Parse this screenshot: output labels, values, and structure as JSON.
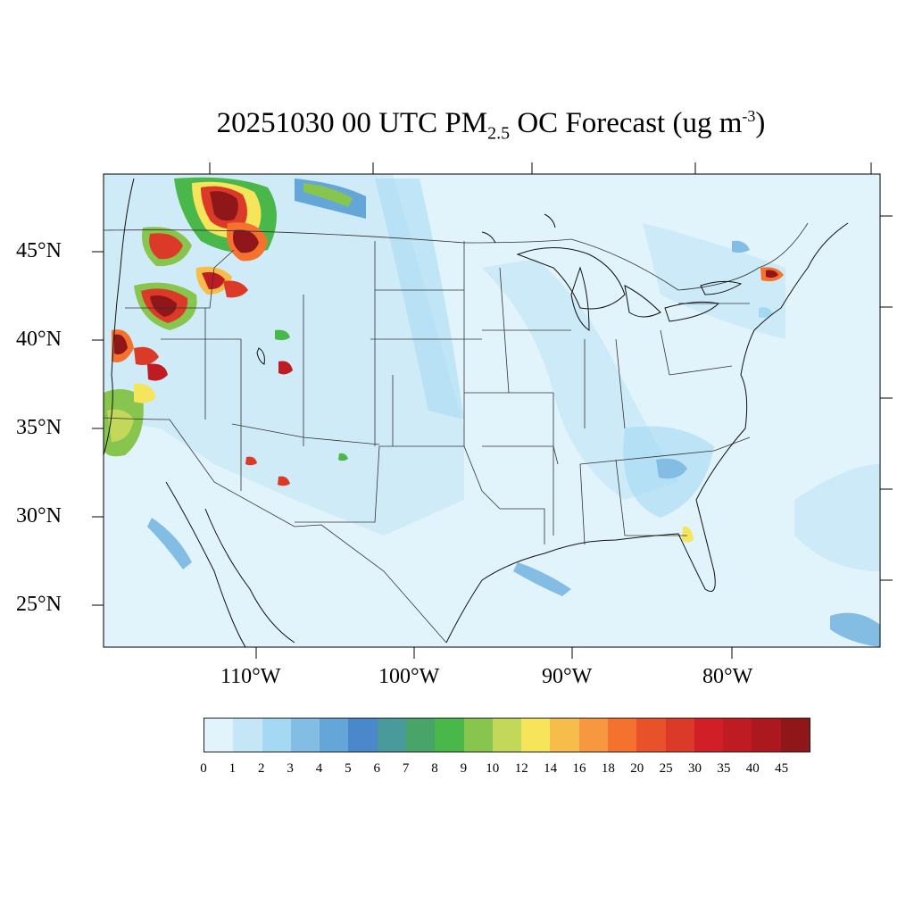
{
  "title": {
    "prefix": "20251030 00 UTC PM",
    "sub": "2.5",
    "middle": " OC Forecast (ug m",
    "sup": "-3",
    "suffix": ")"
  },
  "axes": {
    "lat_labels": [
      "45°N",
      "40°N",
      "35°N",
      "30°N",
      "25°N"
    ],
    "lon_labels": [
      "110°W",
      "100°W",
      "90°W",
      "80°W"
    ]
  },
  "colorbar": {
    "tick_labels": [
      "0",
      "1",
      "2",
      "3",
      "4",
      "5",
      "6",
      "7",
      "8",
      "9",
      "10",
      "12",
      "14",
      "16",
      "18",
      "20",
      "25",
      "30",
      "35",
      "40",
      "45"
    ],
    "colors": [
      "#e1f3fb",
      "#c4e6f7",
      "#a4d8f3",
      "#84bde4",
      "#64a6d7",
      "#4a88cb",
      "#4a9a9c",
      "#49a46a",
      "#4ab74b",
      "#87c54e",
      "#c3d75a",
      "#f6e45b",
      "#f7bd4a",
      "#f79841",
      "#f4712e",
      "#e7522b",
      "#dc3a28",
      "#d11f28",
      "#bf1b22",
      "#ab181d",
      "#8f1619"
    ]
  },
  "colors": {
    "background": "#e1f3fb",
    "boundary": "#333333"
  }
}
